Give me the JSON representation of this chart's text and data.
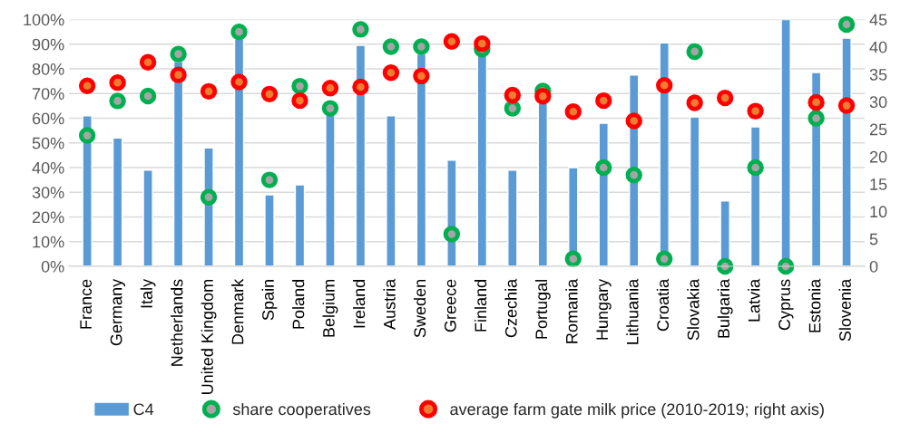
{
  "chart_data": {
    "type": "bar",
    "categories": [
      "France",
      "Germany",
      "Italy",
      "Netherlands",
      "United Kingdom",
      "Denmark",
      "Spain",
      "Poland",
      "Belgium",
      "Ireland",
      "Austria",
      "Sweden",
      "Greece",
      "Finland",
      "Czechia",
      "Portugal",
      "Romania",
      "Hungary",
      "Lithuania",
      "Croatia",
      "Slovakia",
      "Bulgaria",
      "Latvia",
      "Cyprus",
      "Estonia",
      "Slovenia"
    ],
    "series": [
      {
        "name": "C4",
        "color": "#5b9bd5",
        "values": [
          61,
          52,
          39,
          83,
          48,
          92,
          29,
          33,
          62,
          89.5,
          61,
          86,
          43,
          86,
          39,
          66,
          40,
          58,
          77.5,
          90.5,
          60.5,
          26.5,
          56.5,
          100,
          78.5,
          92.5
        ]
      },
      {
        "name": "share cooperatives",
        "type": "scatter",
        "color": "#00b050",
        "values": [
          53,
          67,
          69,
          86,
          28,
          95,
          35,
          73,
          64,
          96,
          89,
          89,
          13,
          88,
          64,
          71,
          3,
          40,
          37,
          3,
          87,
          0,
          40,
          0,
          60,
          98
        ]
      },
      {
        "name": "average farm gate milk price (2010-2019; right axis)",
        "type": "scatter",
        "axis": "y2",
        "color": "#ff0000",
        "values": [
          32.9,
          33.5,
          37.2,
          34.9,
          31.9,
          33.6,
          31.4,
          30.2,
          32.5,
          32.7,
          35.3,
          34.7,
          41,
          40.6,
          31.2,
          31,
          28.2,
          30.2,
          26.5,
          33,
          29.8,
          30.7,
          28.3,
          null,
          29.9,
          29.3
        ]
      }
    ],
    "ylim": [
      0,
      100
    ],
    "yticks": [
      {
        "value": 0,
        "label": "0%"
      },
      {
        "value": 10,
        "label": "10%"
      },
      {
        "value": 20,
        "label": "20%"
      },
      {
        "value": 30,
        "label": "30%"
      },
      {
        "value": 40,
        "label": "40%"
      },
      {
        "value": 50,
        "label": "50%"
      },
      {
        "value": 60,
        "label": "60%"
      },
      {
        "value": 70,
        "label": "70%"
      },
      {
        "value": 80,
        "label": "80%"
      },
      {
        "value": 90,
        "label": "90%"
      },
      {
        "value": 100,
        "label": "100%"
      }
    ],
    "y2lim": [
      0,
      45
    ],
    "y2ticks": [
      0,
      5,
      10,
      15,
      20,
      25,
      30,
      35,
      40,
      45
    ],
    "grid": "y",
    "legend": "bottom",
    "marker": "circle"
  }
}
